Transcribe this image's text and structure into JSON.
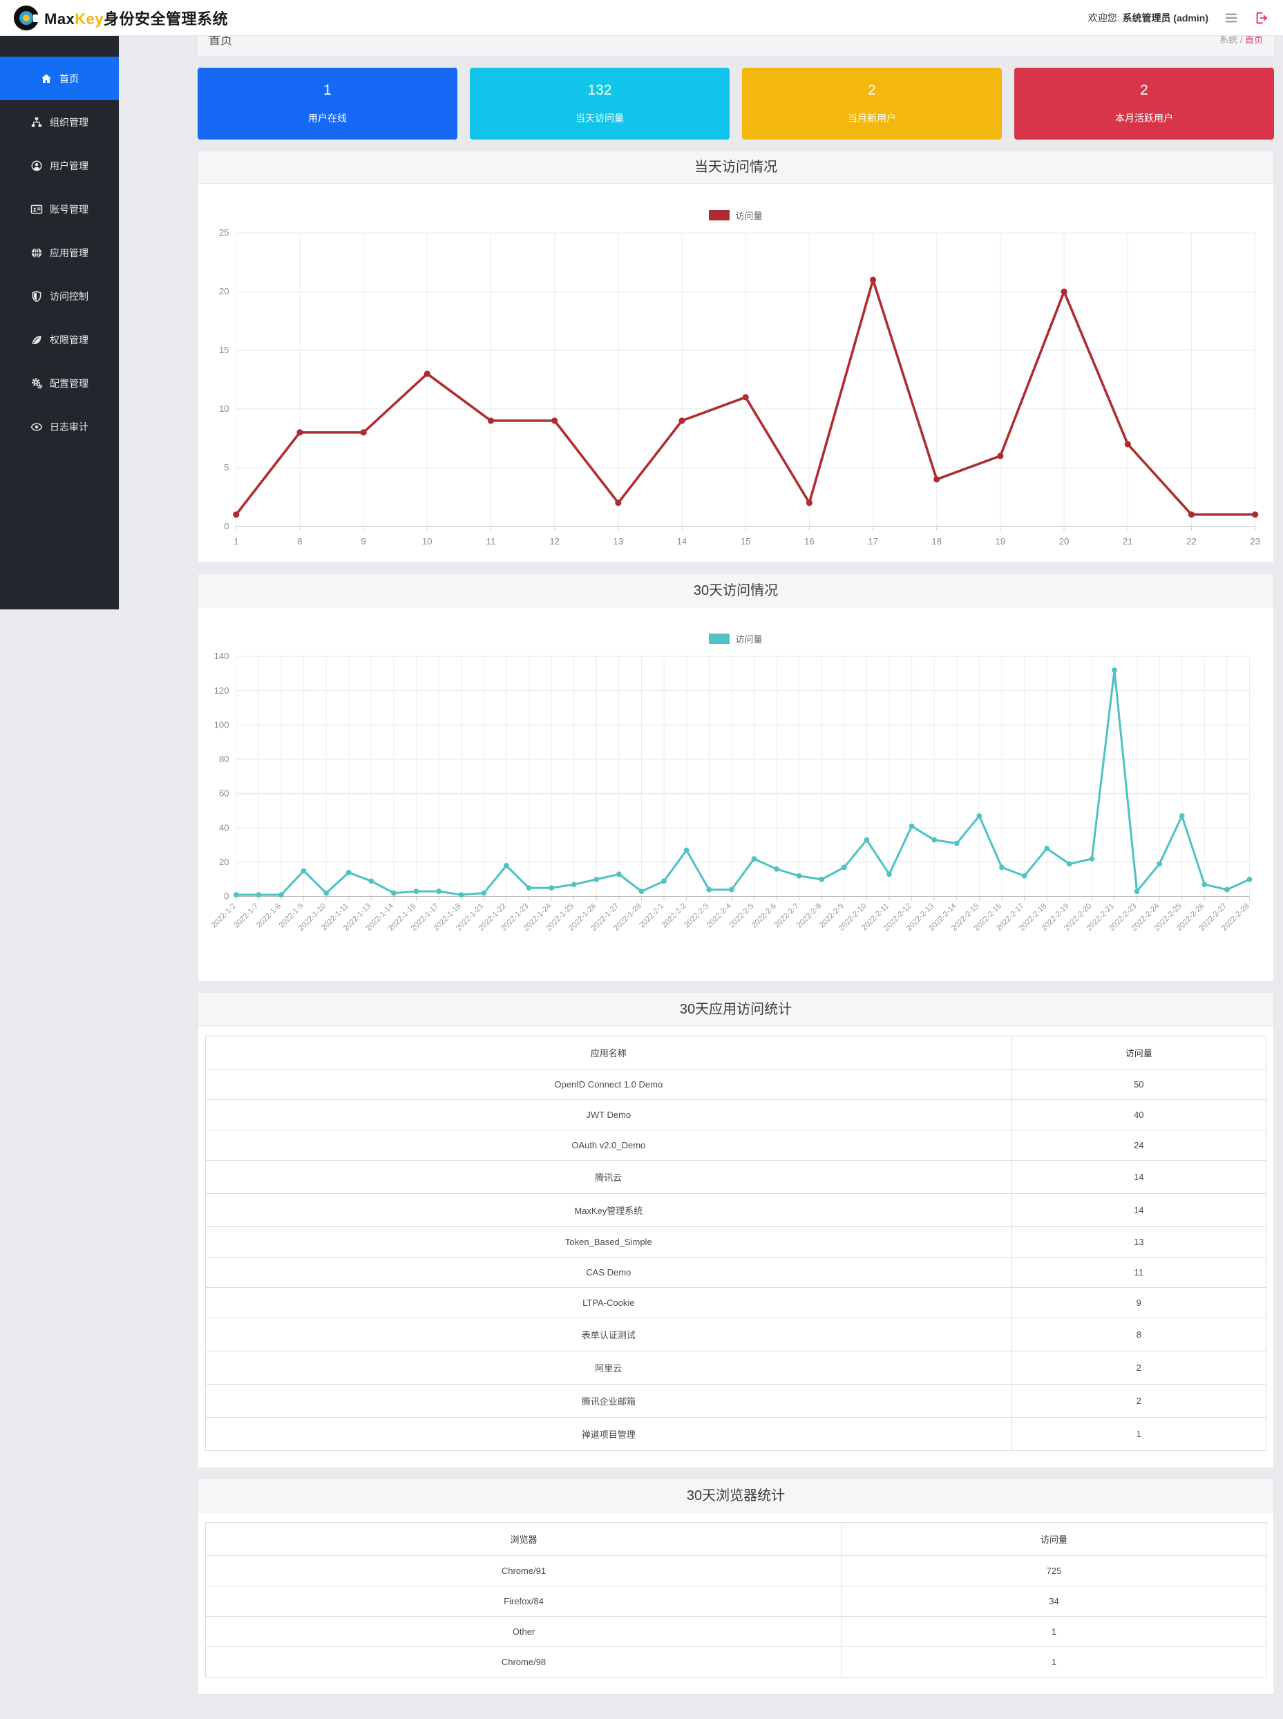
{
  "header": {
    "brand_max": "Max",
    "brand_key": "Key",
    "brand_suffix": "身份安全管理系统",
    "welcome_prefix": "欢迎您:",
    "user": "系统管理员 (admin)",
    "icons": [
      "menu-icon",
      "logout-icon"
    ]
  },
  "sidebar": {
    "items": [
      {
        "id": "home",
        "label": "首页",
        "icon": "home-icon",
        "active": true
      },
      {
        "id": "org",
        "label": "组织管理",
        "icon": "sitemap-icon",
        "active": false
      },
      {
        "id": "user",
        "label": "用户管理",
        "icon": "user-circle-icon",
        "active": false
      },
      {
        "id": "account",
        "label": "账号管理",
        "icon": "id-card-icon",
        "active": false
      },
      {
        "id": "app",
        "label": "应用管理",
        "icon": "globe-icon",
        "active": false
      },
      {
        "id": "access",
        "label": "访问控制",
        "icon": "shield-icon",
        "active": false
      },
      {
        "id": "perm",
        "label": "权限管理",
        "icon": "leaf-icon",
        "active": false
      },
      {
        "id": "config",
        "label": "配置管理",
        "icon": "cogs-icon",
        "active": false
      },
      {
        "id": "audit",
        "label": "日志审计",
        "icon": "eye-icon",
        "active": false
      }
    ]
  },
  "breadcrumb": {
    "page_title": "首页",
    "root": "系统",
    "separator": "/",
    "current": "首页"
  },
  "stats": [
    {
      "value": "1",
      "label": "用户在线",
      "color": "#1569f4"
    },
    {
      "value": "132",
      "label": "当天访问量",
      "color": "#10c5e9"
    },
    {
      "value": "2",
      "label": "当月新用户",
      "color": "#f3b70d"
    },
    {
      "value": "2",
      "label": "本月活跃用户",
      "color": "#d8354b"
    }
  ],
  "chart_data": [
    {
      "type": "line",
      "title": "当天访问情况",
      "legend": "访问量",
      "color": "#b02b30",
      "categories": [
        "1",
        "8",
        "9",
        "10",
        "11",
        "12",
        "13",
        "14",
        "15",
        "16",
        "17",
        "18",
        "19",
        "20",
        "21",
        "22",
        "23"
      ],
      "values": [
        1,
        8,
        8,
        13,
        9,
        9,
        2,
        9,
        11,
        2,
        21,
        4,
        6,
        20,
        7,
        1,
        1
      ],
      "xlabel": "",
      "ylabel": "",
      "ylim": [
        0,
        25
      ],
      "yticks": [
        0,
        5,
        10,
        15,
        20,
        25
      ],
      "grid": true,
      "legend_position": "top-center",
      "x_label_rotate": false
    },
    {
      "type": "line",
      "title": "30天访问情况",
      "legend": "访问量",
      "color": "#4fc2c4",
      "categories": [
        "2022-1-2",
        "2022-1-7",
        "2022-1-8",
        "2022-1-9",
        "2022-1-10",
        "2022-1-11",
        "2022-1-13",
        "2022-1-14",
        "2022-1-16",
        "2022-1-17",
        "2022-1-18",
        "2022-1-21",
        "2022-1-22",
        "2022-1-23",
        "2022-1-24",
        "2022-1-25",
        "2022-1-26",
        "2022-1-27",
        "2022-1-28",
        "2022-2-1",
        "2022-2-2",
        "2022-2-3",
        "2022-2-4",
        "2022-2-5",
        "2022-2-6",
        "2022-2-7",
        "2022-2-8",
        "2022-2-9",
        "2022-2-10",
        "2022-2-11",
        "2022-2-12",
        "2022-2-13",
        "2022-2-14",
        "2022-2-15",
        "2022-2-16",
        "2022-2-17",
        "2022-2-18",
        "2022-2-19",
        "2022-2-20",
        "2022-2-21",
        "2022-2-23",
        "2022-2-24",
        "2022-2-25",
        "2022-2-26",
        "2022-2-27",
        "2022-2-28"
      ],
      "values": [
        1,
        1,
        1,
        15,
        2,
        14,
        9,
        2,
        3,
        3,
        1,
        2,
        18,
        5,
        5,
        7,
        10,
        13,
        3,
        9,
        27,
        4,
        4,
        22,
        16,
        12,
        10,
        17,
        33,
        13,
        41,
        33,
        31,
        47,
        17,
        12,
        28,
        19,
        22,
        132,
        3,
        19,
        47,
        7,
        4,
        10
      ],
      "xlabel": "",
      "ylabel": "",
      "ylim": [
        0,
        140
      ],
      "yticks": [
        0,
        20,
        40,
        60,
        80,
        100,
        120,
        140
      ],
      "grid": true,
      "legend_position": "top-center",
      "x_label_rotate": true
    }
  ],
  "tables": [
    {
      "title": "30天应用访问统计",
      "columns": [
        "应用名称",
        "访问量"
      ],
      "col_widths": [
        "76%",
        "24%"
      ],
      "rows": [
        [
          "OpenID Connect 1.0 Demo",
          "50"
        ],
        [
          "JWT Demo",
          "40"
        ],
        [
          "OAuth v2.0_Demo",
          "24"
        ],
        [
          "腾讯云",
          "14"
        ],
        [
          "MaxKey管理系统",
          "14"
        ],
        [
          "Token_Based_Simple",
          "13"
        ],
        [
          "CAS Demo",
          "11"
        ],
        [
          "LTPA-Cookie",
          "9"
        ],
        [
          "表单认证测试",
          "8"
        ],
        [
          "阿里云",
          "2"
        ],
        [
          "腾讯企业邮箱",
          "2"
        ],
        [
          "禅道项目管理",
          "1"
        ]
      ]
    },
    {
      "title": "30天浏览器统计",
      "columns": [
        "浏览器",
        "访问量"
      ],
      "col_widths": [
        "60%",
        "40%"
      ],
      "rows": [
        [
          "Chrome/91",
          "725"
        ],
        [
          "Firefox/84",
          "34"
        ],
        [
          "Other",
          "1"
        ],
        [
          "Chrome/98",
          "1"
        ]
      ]
    }
  ]
}
